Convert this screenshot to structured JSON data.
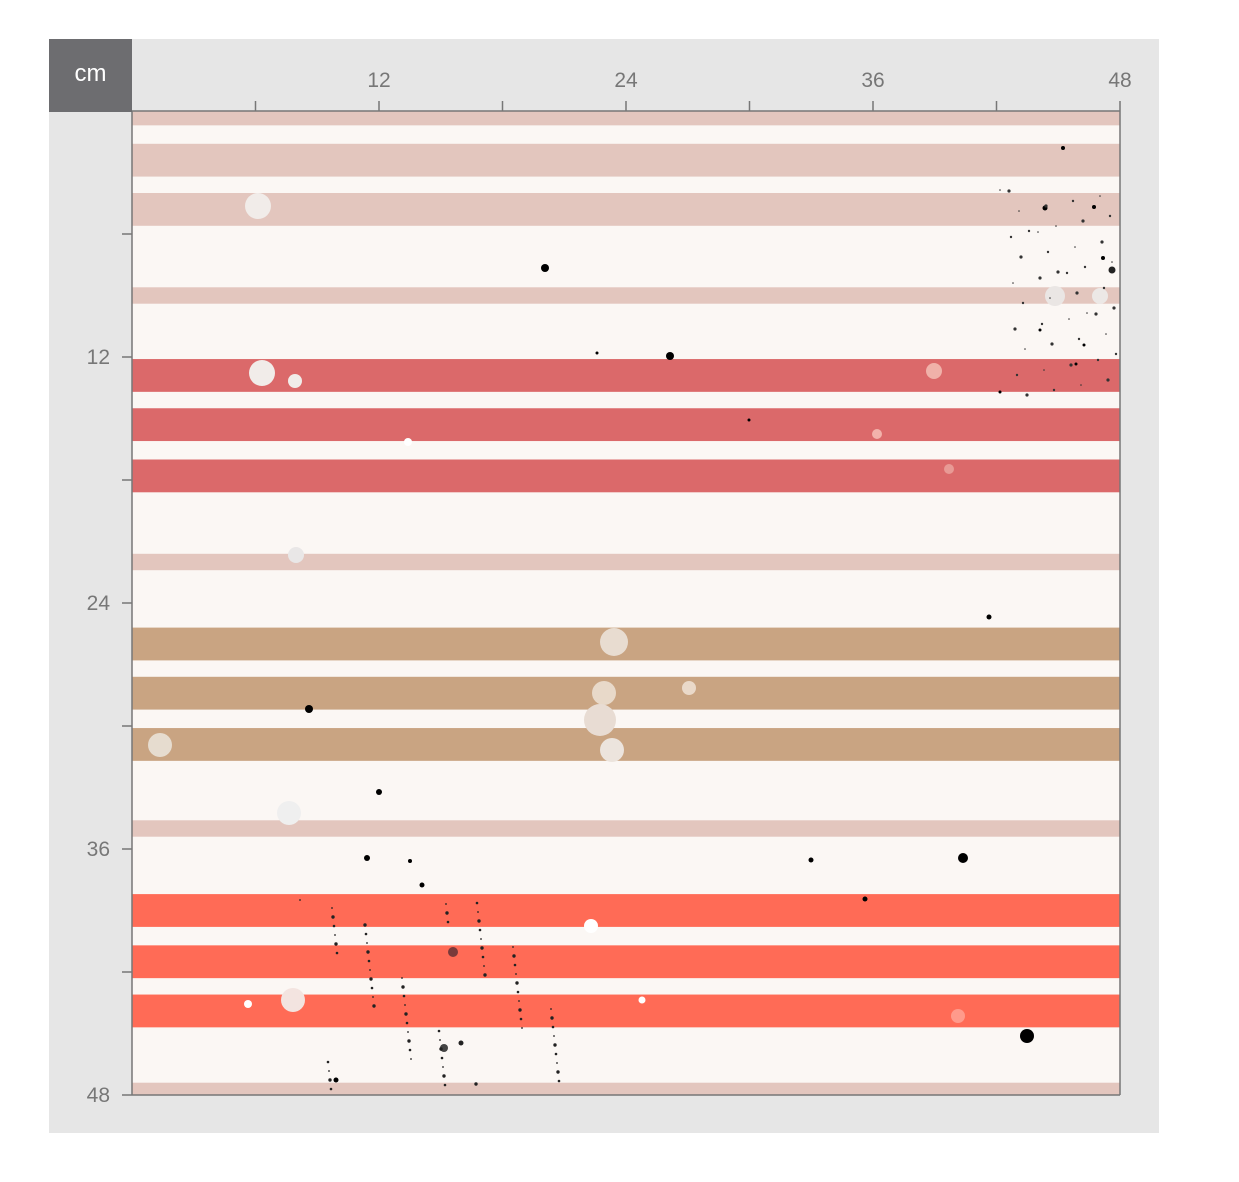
{
  "ruler": {
    "unit": "cm",
    "max": 48,
    "labels": [
      "12",
      "24",
      "36",
      "48"
    ],
    "label_values": [
      12,
      24,
      36,
      48
    ],
    "major_step": 12,
    "minor_step": 6
  },
  "fabric": {
    "background_color": "#fbf7f4",
    "stripes": [
      {
        "from_cm": 0.0,
        "to_cm": 0.7,
        "color": "#e3c6be"
      },
      {
        "from_cm": 1.6,
        "to_cm": 3.2,
        "color": "#e3c6be"
      },
      {
        "from_cm": 4.0,
        "to_cm": 5.6,
        "color": "#e3c6be"
      },
      {
        "from_cm": 8.6,
        "to_cm": 9.4,
        "color": "#e3c6be"
      },
      {
        "from_cm": 12.1,
        "to_cm": 13.7,
        "color": "#db696a"
      },
      {
        "from_cm": 14.5,
        "to_cm": 16.1,
        "color": "#db696a"
      },
      {
        "from_cm": 17.0,
        "to_cm": 18.6,
        "color": "#db696a"
      },
      {
        "from_cm": 21.6,
        "to_cm": 22.4,
        "color": "#e3c6be"
      },
      {
        "from_cm": 25.2,
        "to_cm": 26.8,
        "color": "#c9a482"
      },
      {
        "from_cm": 27.6,
        "to_cm": 29.2,
        "color": "#c9a482"
      },
      {
        "from_cm": 30.1,
        "to_cm": 31.7,
        "color": "#c9a482"
      },
      {
        "from_cm": 34.6,
        "to_cm": 35.4,
        "color": "#e3c6be"
      },
      {
        "from_cm": 38.2,
        "to_cm": 39.8,
        "color": "#ff6b56"
      },
      {
        "from_cm": 40.7,
        "to_cm": 42.3,
        "color": "#ff6b56"
      },
      {
        "from_cm": 43.1,
        "to_cm": 44.7,
        "color": "#ff6b56"
      },
      {
        "from_cm": 47.4,
        "to_cm": 48.0,
        "color": "#e3c6be"
      }
    ]
  },
  "colors": {
    "frame": "#e6e6e6",
    "unit_box": "#6d6d70",
    "ruler_line": "#777777"
  }
}
